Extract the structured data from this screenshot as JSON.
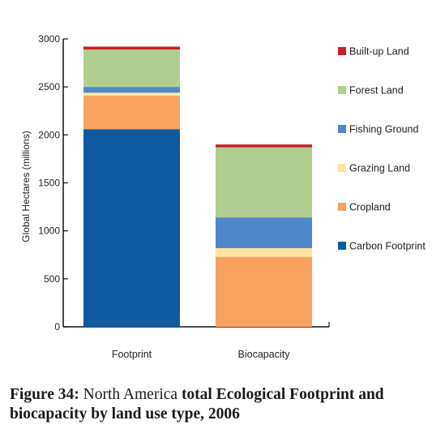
{
  "chart_data": {
    "type": "bar",
    "stacked": true,
    "categories": [
      "Footprint",
      "Biocapacity"
    ],
    "ylabel": "Global Hectares (millions)",
    "ylim": [
      0,
      3000
    ],
    "yticks": [
      0,
      500,
      1000,
      1500,
      2000,
      2500,
      3000
    ],
    "legend_position": "right",
    "series": [
      {
        "name": "Carbon Footprint",
        "color": "#0f5a9e",
        "values": [
          2060,
          0
        ]
      },
      {
        "name": "Cropland",
        "color": "#f7a261",
        "values": [
          350,
          730
        ]
      },
      {
        "name": "Grazing Land",
        "color": "#fde4a0",
        "values": [
          30,
          90
        ]
      },
      {
        "name": "Fishing Ground",
        "color": "#4f88c8",
        "values": [
          60,
          320
        ]
      },
      {
        "name": "Forest Land",
        "color": "#b1cd8f",
        "values": [
          390,
          730
        ]
      },
      {
        "name": "Built-up Land",
        "color": "#c8202a",
        "values": [
          30,
          30
        ]
      }
    ]
  },
  "caption": {
    "figure_label": "Figure 34:",
    "part1": "North America",
    "part2": "total Ecological Footprint and biocapacity by land use type, 2006"
  }
}
